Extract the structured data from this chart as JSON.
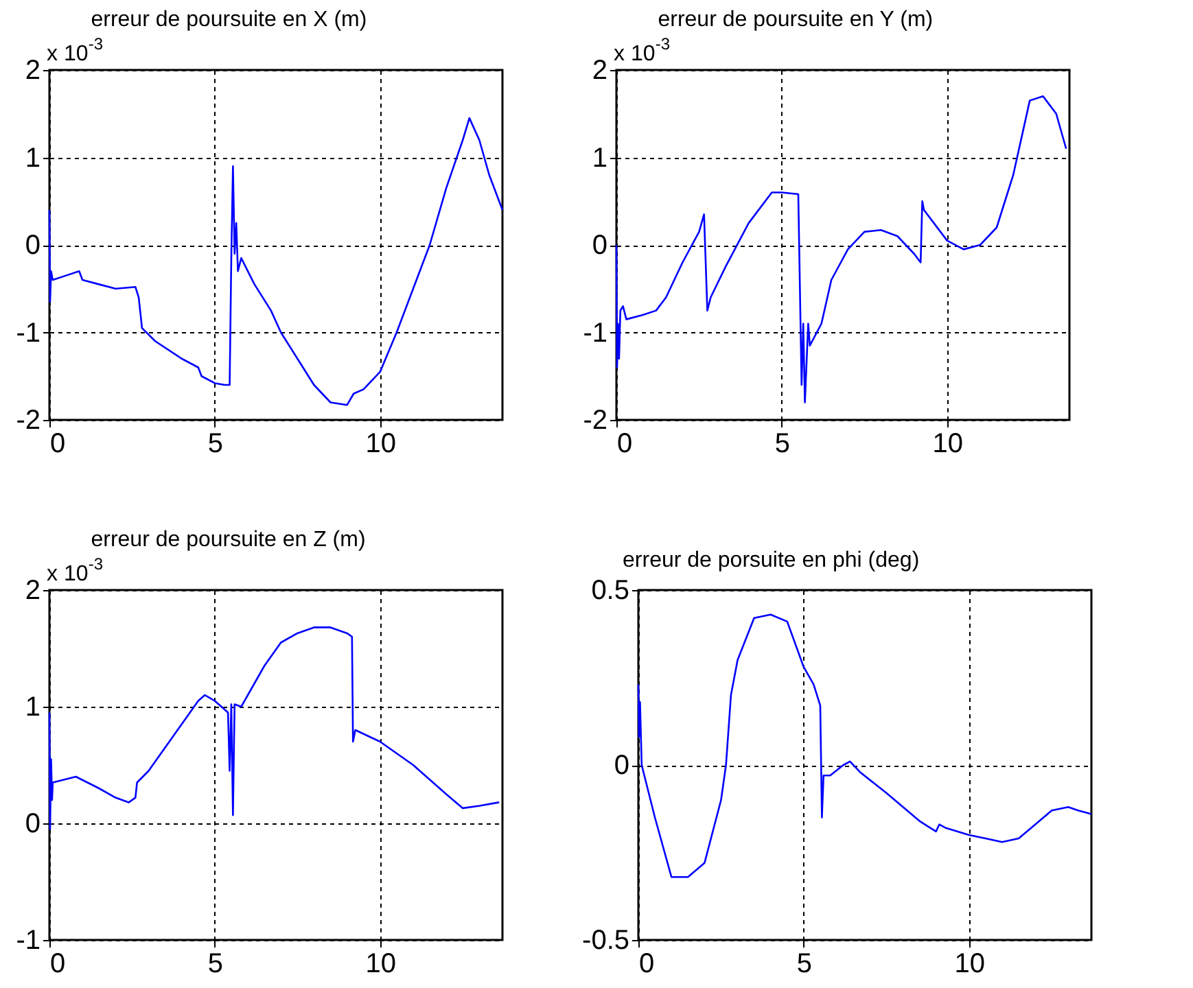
{
  "chart_data": [
    {
      "type": "line",
      "title": "erreur de poursuite en X (m)",
      "annotations": [
        "x 10$^{-3}$"
      ],
      "xlim": [
        0,
        13.7
      ],
      "xticks": [
        0,
        5,
        10
      ],
      "ylim": [
        -2,
        2
      ],
      "yticks": [
        -2,
        -1,
        0,
        1,
        2
      ],
      "grid": true,
      "x": [
        0,
        0.02,
        0.05,
        0.1,
        0.5,
        0.9,
        1.0,
        1.5,
        2.0,
        2.6,
        2.7,
        2.8,
        3.2,
        4.0,
        4.5,
        4.6,
        5.0,
        5.3,
        5.45,
        5.5,
        5.55,
        5.6,
        5.65,
        5.7,
        5.8,
        6.2,
        6.7,
        7.0,
        7.5,
        8.0,
        8.5,
        9.0,
        9.2,
        9.5,
        10.0,
        10.5,
        11.0,
        11.5,
        12.0,
        12.5,
        12.7,
        13.0,
        13.3,
        13.7
      ],
      "series": [
        {
          "color": "#0000ff",
          "values": [
            0.4,
            -0.65,
            -0.3,
            -0.4,
            -0.35,
            -0.3,
            -0.4,
            -0.45,
            -0.5,
            -0.48,
            -0.6,
            -0.95,
            -1.1,
            -1.3,
            -1.4,
            -1.5,
            -1.58,
            -1.6,
            -1.6,
            -0.15,
            0.9,
            -0.1,
            0.25,
            -0.3,
            -0.15,
            -0.45,
            -0.75,
            -1.0,
            -1.3,
            -1.6,
            -1.8,
            -1.83,
            -1.7,
            -1.65,
            -1.45,
            -1.0,
            -0.5,
            0.0,
            0.65,
            1.2,
            1.45,
            1.2,
            0.8,
            0.4
          ]
        }
      ]
    },
    {
      "type": "line",
      "title": "erreur de poursuite en Y (m)",
      "annotations": [
        "x 10$^{-3}$"
      ],
      "xlim": [
        0,
        13.7
      ],
      "xticks": [
        0,
        5,
        10
      ],
      "ylim": [
        -2,
        2
      ],
      "yticks": [
        -2,
        -1,
        0,
        1,
        2
      ],
      "grid": true,
      "x": [
        0,
        0.02,
        0.05,
        0.08,
        0.12,
        0.2,
        0.3,
        0.8,
        1.2,
        1.5,
        2.0,
        2.5,
        2.65,
        2.75,
        2.85,
        3.3,
        4.0,
        4.7,
        5.0,
        5.5,
        5.6,
        5.65,
        5.7,
        5.8,
        5.85,
        6.2,
        6.5,
        7.0,
        7.5,
        8.0,
        8.5,
        9.0,
        9.2,
        9.25,
        9.3,
        10.0,
        10.5,
        11.0,
        11.5,
        12.0,
        12.5,
        12.9,
        13.3,
        13.6
      ],
      "series": [
        {
          "color": "#0000ff",
          "values": [
            0,
            -1.4,
            -0.9,
            -1.3,
            -0.75,
            -0.7,
            -0.85,
            -0.8,
            -0.75,
            -0.6,
            -0.2,
            0.15,
            0.35,
            -0.75,
            -0.6,
            -0.25,
            0.25,
            0.6,
            0.6,
            0.58,
            -1.6,
            -0.9,
            -1.8,
            -0.9,
            -1.15,
            -0.9,
            -0.4,
            -0.05,
            0.15,
            0.17,
            0.1,
            -0.1,
            -0.2,
            0.5,
            0.4,
            0.05,
            -0.05,
            0.0,
            0.2,
            0.8,
            1.65,
            1.7,
            1.5,
            1.1
          ]
        }
      ]
    },
    {
      "type": "line",
      "title": "erreur de poursuite en Z (m)",
      "annotations": [
        "x 10$^{-3}$"
      ],
      "xlim": [
        0,
        13.7
      ],
      "xticks": [
        0,
        5,
        10
      ],
      "ylim": [
        -1,
        2
      ],
      "yticks": [
        -1,
        0,
        1,
        2
      ],
      "grid": true,
      "x": [
        0,
        0.02,
        0.05,
        0.08,
        0.1,
        0.8,
        1.5,
        2.0,
        2.4,
        2.6,
        2.65,
        3.0,
        4.0,
        4.5,
        4.7,
        5.0,
        5.4,
        5.45,
        5.5,
        5.55,
        5.6,
        5.8,
        6.0,
        6.5,
        7.0,
        7.5,
        8.0,
        8.5,
        9.0,
        9.15,
        9.18,
        9.25,
        10.0,
        11.0,
        12.0,
        12.5,
        13.0,
        13.6
      ],
      "series": [
        {
          "color": "#0000ff",
          "values": [
            0.95,
            -0.05,
            0.55,
            0.2,
            0.35,
            0.4,
            0.3,
            0.22,
            0.18,
            0.22,
            0.35,
            0.45,
            0.85,
            1.05,
            1.1,
            1.05,
            0.95,
            0.45,
            1.02,
            0.07,
            1.02,
            1.0,
            1.1,
            1.35,
            1.55,
            1.63,
            1.68,
            1.68,
            1.63,
            1.6,
            0.7,
            0.8,
            0.7,
            0.5,
            0.25,
            0.13,
            0.15,
            0.18
          ]
        }
      ]
    },
    {
      "type": "line",
      "title": "erreur de porsuite en phi (deg)",
      "xlim": [
        0,
        13.7
      ],
      "xticks": [
        0,
        5,
        10
      ],
      "ylim": [
        -0.5,
        0.5
      ],
      "yticks": [
        -0.5,
        0,
        0.5
      ],
      "grid": true,
      "x": [
        0,
        0.02,
        0.05,
        0.1,
        0.5,
        1.0,
        1.5,
        2.0,
        2.5,
        2.65,
        2.8,
        3.0,
        3.5,
        4.0,
        4.5,
        5.0,
        5.3,
        5.5,
        5.55,
        5.6,
        5.8,
        6.2,
        6.4,
        6.7,
        7.5,
        8.5,
        9.0,
        9.1,
        9.3,
        10.0,
        10.5,
        11.0,
        11.5,
        12.0,
        12.5,
        13.0,
        13.3,
        13.7
      ],
      "series": [
        {
          "color": "#0000ff",
          "values": [
            0.23,
            0.08,
            0.18,
            0.0,
            -0.15,
            -0.32,
            -0.32,
            -0.28,
            -0.1,
            0.0,
            0.2,
            0.3,
            0.42,
            0.43,
            0.41,
            0.28,
            0.23,
            0.17,
            -0.15,
            -0.03,
            -0.03,
            0.0,
            0.01,
            -0.02,
            -0.08,
            -0.16,
            -0.19,
            -0.17,
            -0.18,
            -0.2,
            -0.21,
            -0.22,
            -0.21,
            -0.17,
            -0.13,
            -0.12,
            -0.13,
            -0.14
          ]
        }
      ]
    }
  ]
}
